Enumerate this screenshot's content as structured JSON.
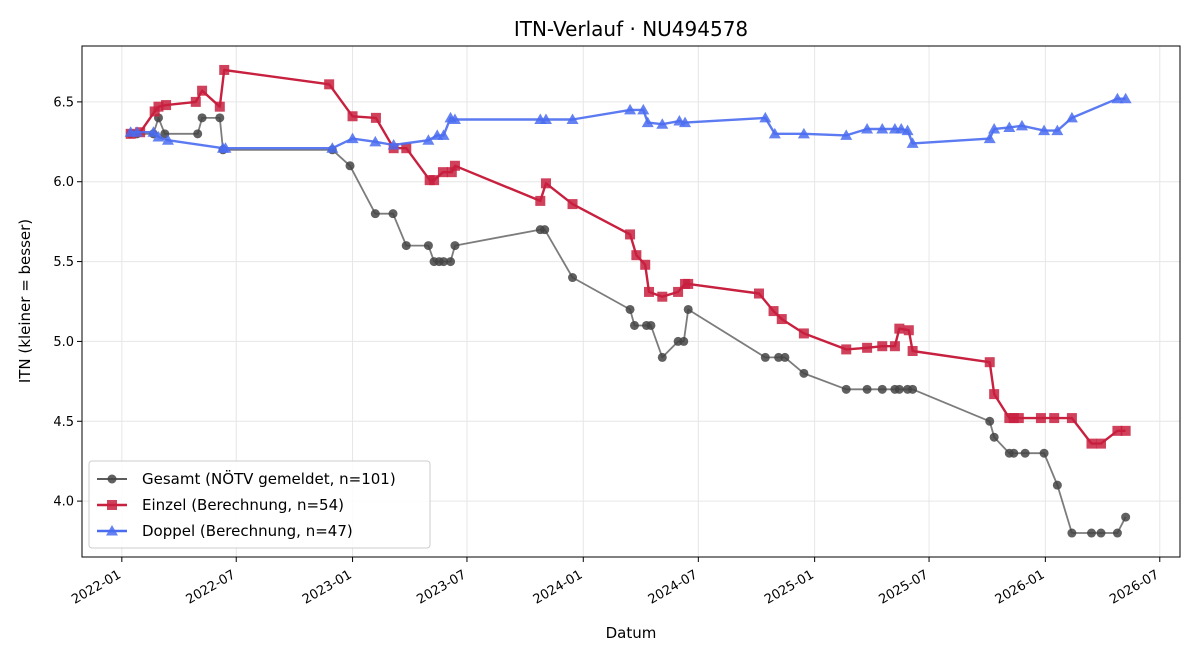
{
  "chart_data": {
    "type": "line",
    "title": "ITN-Verlauf · NU494578",
    "xlabel": "Datum",
    "ylabel": "ITN  (kleiner = besser)",
    "xlim": [
      "2021-10-30",
      "2026-08-02"
    ],
    "ylim": [
      3.65,
      6.85
    ],
    "x_ticks": [
      "2022-01",
      "2022-07",
      "2023-01",
      "2023-07",
      "2024-01",
      "2024-07",
      "2025-01",
      "2025-07",
      "2026-01",
      "2026-07"
    ],
    "y_ticks": [
      "4.0",
      "4.5",
      "5.0",
      "5.5",
      "6.0",
      "6.5"
    ],
    "grid": true,
    "legend_position": "lower-left",
    "series": [
      {
        "name": "Gesamt (NÖTV gemeldet, n=101)",
        "color": "#444444",
        "marker": "circle",
        "points": [
          [
            "2022-01-15",
            6.3
          ],
          [
            "2022-01-25",
            6.3
          ],
          [
            "2022-02-20",
            6.3
          ],
          [
            "2022-02-28",
            6.4
          ],
          [
            "2022-03-10",
            6.3
          ],
          [
            "2022-05-01",
            6.3
          ],
          [
            "2022-05-08",
            6.4
          ],
          [
            "2022-06-05",
            6.4
          ],
          [
            "2022-06-10",
            6.2
          ],
          [
            "2022-11-30",
            6.2
          ],
          [
            "2022-12-28",
            6.1
          ],
          [
            "2023-02-06",
            5.8
          ],
          [
            "2023-03-06",
            5.8
          ],
          [
            "2023-03-27",
            5.6
          ],
          [
            "2023-05-01",
            5.6
          ],
          [
            "2023-05-10",
            5.5
          ],
          [
            "2023-05-18",
            5.5
          ],
          [
            "2023-05-25",
            5.5
          ],
          [
            "2023-06-05",
            5.5
          ],
          [
            "2023-06-12",
            5.6
          ],
          [
            "2023-10-25",
            5.7
          ],
          [
            "2023-11-01",
            5.7
          ],
          [
            "2023-12-15",
            5.4
          ],
          [
            "2024-03-15",
            5.2
          ],
          [
            "2024-03-22",
            5.1
          ],
          [
            "2024-04-10",
            5.1
          ],
          [
            "2024-04-17",
            5.1
          ],
          [
            "2024-05-05",
            4.9
          ],
          [
            "2024-05-30",
            5.0
          ],
          [
            "2024-06-08",
            5.0
          ],
          [
            "2024-06-15",
            5.2
          ],
          [
            "2024-10-15",
            4.9
          ],
          [
            "2024-11-05",
            4.9
          ],
          [
            "2024-11-15",
            4.9
          ],
          [
            "2024-12-15",
            4.8
          ],
          [
            "2025-02-20",
            4.7
          ],
          [
            "2025-03-25",
            4.7
          ],
          [
            "2025-04-18",
            4.7
          ],
          [
            "2025-05-08",
            4.7
          ],
          [
            "2025-05-15",
            4.7
          ],
          [
            "2025-05-28",
            4.7
          ],
          [
            "2025-06-05",
            4.7
          ],
          [
            "2025-10-05",
            4.5
          ],
          [
            "2025-10-12",
            4.4
          ],
          [
            "2025-11-05",
            4.3
          ],
          [
            "2025-11-12",
            4.3
          ],
          [
            "2025-11-30",
            4.3
          ],
          [
            "2025-12-30",
            4.3
          ],
          [
            "2026-01-20",
            4.1
          ],
          [
            "2026-02-12",
            3.8
          ],
          [
            "2026-03-15",
            3.8
          ],
          [
            "2026-03-30",
            3.8
          ],
          [
            "2026-04-25",
            3.8
          ],
          [
            "2026-05-08",
            3.9
          ]
        ]
      },
      {
        "name": "Einzel (Berechnung, n=54)",
        "color": "#c8203f",
        "marker": "square",
        "points": [
          [
            "2022-01-15",
            6.3
          ],
          [
            "2022-01-30",
            6.31
          ],
          [
            "2022-02-22",
            6.44
          ],
          [
            "2022-02-28",
            6.47
          ],
          [
            "2022-03-12",
            6.48
          ],
          [
            "2022-04-28",
            6.5
          ],
          [
            "2022-05-08",
            6.57
          ],
          [
            "2022-06-05",
            6.47
          ],
          [
            "2022-06-12",
            6.7
          ],
          [
            "2022-11-25",
            6.61
          ],
          [
            "2023-01-01",
            6.41
          ],
          [
            "2023-02-07",
            6.4
          ],
          [
            "2023-03-07",
            6.21
          ],
          [
            "2023-03-27",
            6.21
          ],
          [
            "2023-05-03",
            6.01
          ],
          [
            "2023-05-10",
            6.01
          ],
          [
            "2023-05-24",
            6.06
          ],
          [
            "2023-06-07",
            6.06
          ],
          [
            "2023-06-12",
            6.1
          ],
          [
            "2023-10-25",
            5.88
          ],
          [
            "2023-11-03",
            5.99
          ],
          [
            "2023-12-15",
            5.86
          ],
          [
            "2024-03-15",
            5.67
          ],
          [
            "2024-03-25",
            5.54
          ],
          [
            "2024-04-08",
            5.48
          ],
          [
            "2024-04-14",
            5.31
          ],
          [
            "2024-05-05",
            5.28
          ],
          [
            "2024-05-30",
            5.31
          ],
          [
            "2024-06-10",
            5.36
          ],
          [
            "2024-06-15",
            5.36
          ],
          [
            "2024-10-05",
            5.3
          ],
          [
            "2024-10-28",
            5.19
          ],
          [
            "2024-11-10",
            5.14
          ],
          [
            "2024-12-15",
            5.05
          ],
          [
            "2025-02-20",
            4.95
          ],
          [
            "2025-03-25",
            4.96
          ],
          [
            "2025-04-18",
            4.97
          ],
          [
            "2025-05-08",
            4.97
          ],
          [
            "2025-05-15",
            5.08
          ],
          [
            "2025-05-30",
            5.07
          ],
          [
            "2025-06-05",
            4.94
          ],
          [
            "2025-10-05",
            4.87
          ],
          [
            "2025-10-12",
            4.67
          ],
          [
            "2025-11-05",
            4.52
          ],
          [
            "2025-11-12",
            4.52
          ],
          [
            "2025-11-20",
            4.52
          ],
          [
            "2025-12-25",
            4.52
          ],
          [
            "2026-01-15",
            4.52
          ],
          [
            "2026-02-12",
            4.52
          ],
          [
            "2026-03-15",
            4.36
          ],
          [
            "2026-03-30",
            4.36
          ],
          [
            "2026-04-25",
            4.44
          ],
          [
            "2026-05-08",
            4.44
          ]
        ]
      },
      {
        "name": "Doppel (Berechnung, n=47)",
        "color": "#4a6cf0",
        "marker": "triangle",
        "points": [
          [
            "2022-01-15",
            6.31
          ],
          [
            "2022-01-25",
            6.31
          ],
          [
            "2022-02-20",
            6.31
          ],
          [
            "2022-02-28",
            6.28
          ],
          [
            "2022-03-15",
            6.26
          ],
          [
            "2022-06-10",
            6.21
          ],
          [
            "2022-06-14",
            6.21
          ],
          [
            "2022-11-30",
            6.21
          ],
          [
            "2023-01-01",
            6.27
          ],
          [
            "2023-02-06",
            6.25
          ],
          [
            "2023-03-07",
            6.23
          ],
          [
            "2023-05-01",
            6.26
          ],
          [
            "2023-05-15",
            6.29
          ],
          [
            "2023-05-25",
            6.29
          ],
          [
            "2023-06-05",
            6.4
          ],
          [
            "2023-06-12",
            6.39
          ],
          [
            "2023-10-25",
            6.39
          ],
          [
            "2023-11-03",
            6.39
          ],
          [
            "2023-12-15",
            6.39
          ],
          [
            "2024-03-15",
            6.45
          ],
          [
            "2024-04-05",
            6.45
          ],
          [
            "2024-04-12",
            6.37
          ],
          [
            "2024-05-05",
            6.36
          ],
          [
            "2024-06-01",
            6.38
          ],
          [
            "2024-06-10",
            6.37
          ],
          [
            "2024-10-15",
            6.4
          ],
          [
            "2024-10-30",
            6.3
          ],
          [
            "2024-12-15",
            6.3
          ],
          [
            "2025-02-20",
            6.29
          ],
          [
            "2025-03-25",
            6.33
          ],
          [
            "2025-04-18",
            6.33
          ],
          [
            "2025-05-08",
            6.33
          ],
          [
            "2025-05-18",
            6.33
          ],
          [
            "2025-05-28",
            6.32
          ],
          [
            "2025-06-05",
            6.24
          ],
          [
            "2025-10-05",
            6.27
          ],
          [
            "2025-10-12",
            6.33
          ],
          [
            "2025-11-05",
            6.34
          ],
          [
            "2025-11-25",
            6.35
          ],
          [
            "2025-12-30",
            6.32
          ],
          [
            "2026-01-20",
            6.32
          ],
          [
            "2026-02-12",
            6.4
          ],
          [
            "2026-04-25",
            6.52
          ],
          [
            "2026-05-08",
            6.52
          ]
        ]
      }
    ]
  }
}
